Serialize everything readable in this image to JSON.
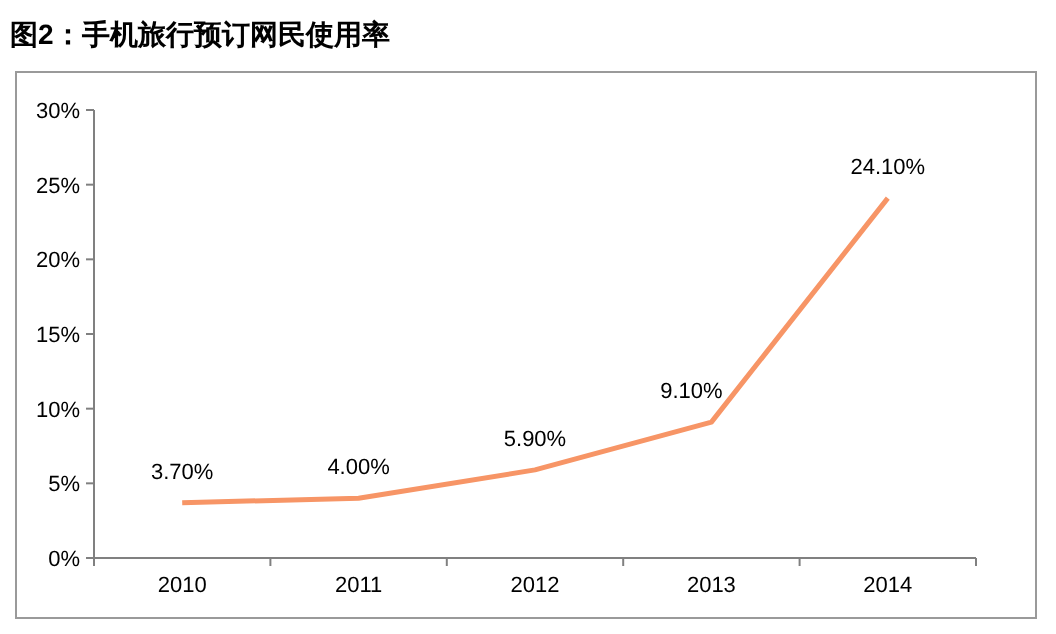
{
  "chart_data": {
    "type": "line",
    "title": "图2：手机旅行预订网民使用率",
    "categories": [
      "2010",
      "2011",
      "2012",
      "2013",
      "2014"
    ],
    "series": [
      {
        "color": "#f79566",
        "values": [
          3.7,
          4.0,
          5.9,
          9.1,
          24.1
        ],
        "value_labels": [
          "3.70%",
          "4.00%",
          "5.90%",
          "9.10%",
          "24.10%"
        ]
      }
    ],
    "ylim": [
      0,
      30
    ],
    "yticks": [
      {
        "value": 0,
        "label": "0%"
      },
      {
        "value": 5,
        "label": "5%"
      },
      {
        "value": 10,
        "label": "10%"
      },
      {
        "value": 15,
        "label": "15%"
      },
      {
        "value": 20,
        "label": "20%"
      },
      {
        "value": 25,
        "label": "25%"
      },
      {
        "value": 30,
        "label": "30%"
      }
    ],
    "marker": "none",
    "line_style": "solid",
    "grid": false
  }
}
